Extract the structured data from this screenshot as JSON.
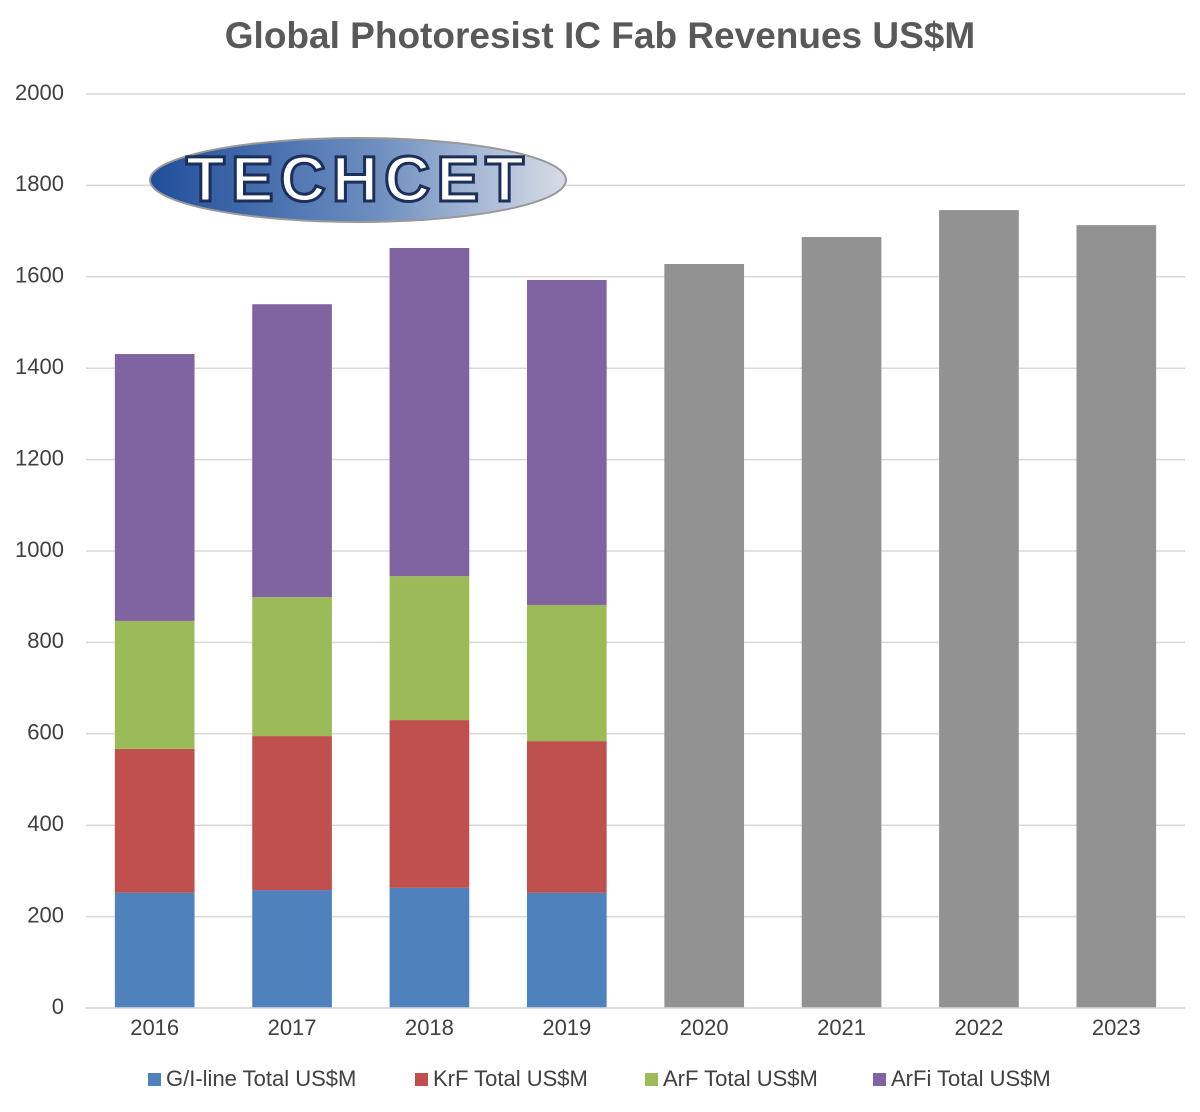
{
  "chart_data": {
    "type": "stacked_bar",
    "title": "Global Photoresist IC Fab Revenues US$M",
    "logo": "TECHCET",
    "categories": [
      "2016",
      "2017",
      "2018",
      "2019",
      "2020",
      "2021",
      "2022",
      "2023"
    ],
    "series": [
      {
        "name": "G/I-line Total US$M",
        "color": "#4f81bd",
        "values": [
          252,
          258,
          263,
          252,
          null,
          null,
          null,
          null
        ]
      },
      {
        "name": "KrF Total US$M",
        "color": "#c0504d",
        "values": [
          315,
          337,
          367,
          332,
          null,
          null,
          null,
          null
        ]
      },
      {
        "name": "ArF Total US$M",
        "color": "#9bbb59",
        "values": [
          280,
          304,
          315,
          298,
          null,
          null,
          null,
          null
        ]
      },
      {
        "name": "ArFi Total US$M",
        "color": "#8064a2",
        "values": [
          584,
          641,
          718,
          711,
          null,
          null,
          null,
          null
        ]
      },
      {
        "color": "#929292",
        "values": [
          null,
          null,
          null,
          null,
          1628,
          1687,
          1746,
          1713
        ]
      }
    ],
    "ylim": [
      0,
      2000
    ],
    "yticks": [
      0,
      200,
      400,
      600,
      800,
      1000,
      1200,
      1400,
      1600,
      1800,
      2000
    ],
    "grid": true,
    "legend": "bottom"
  }
}
